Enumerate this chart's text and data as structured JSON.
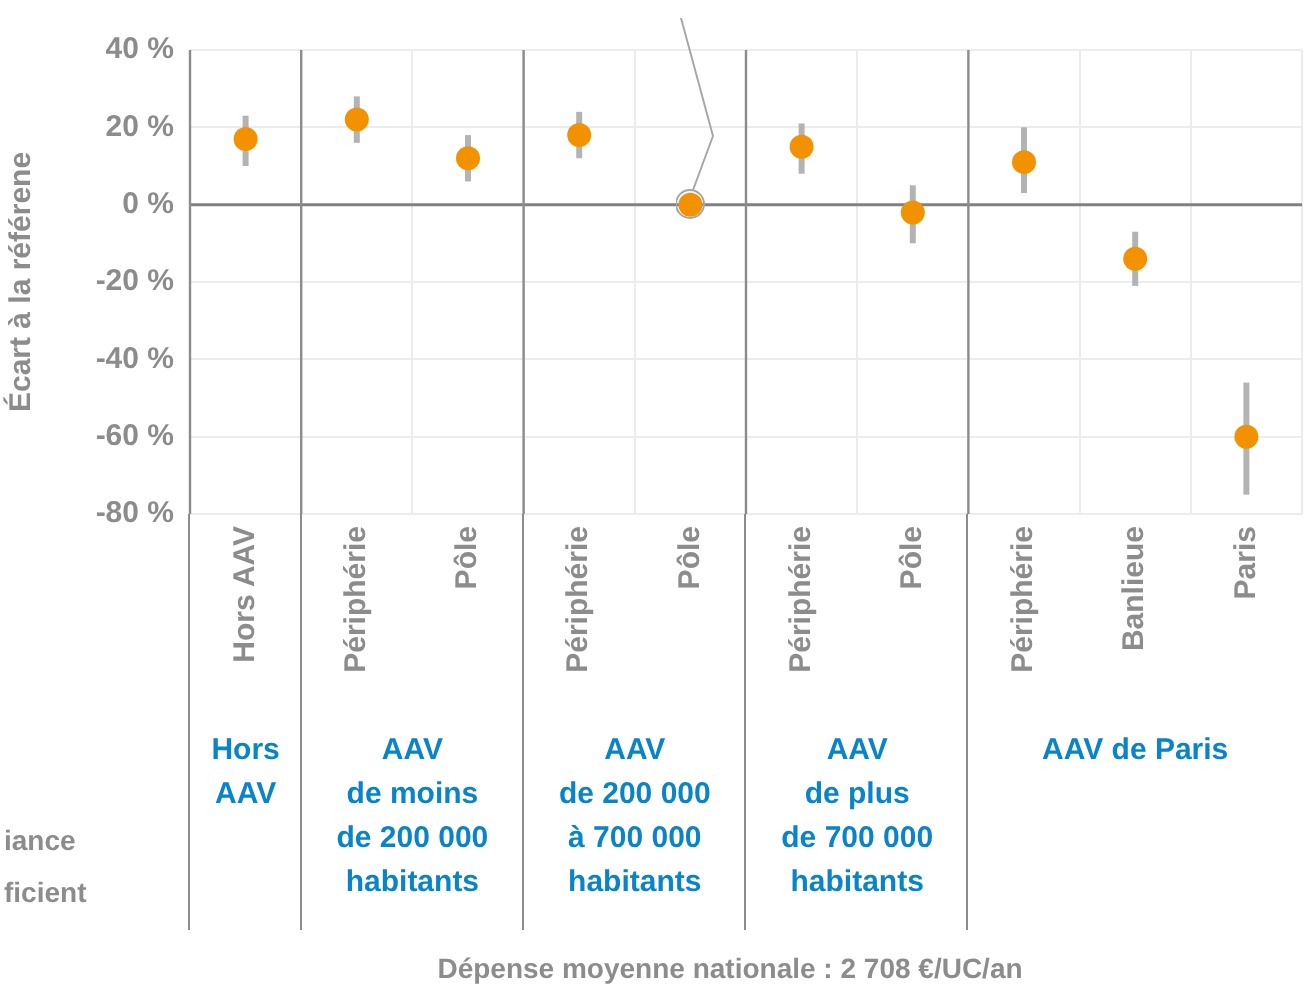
{
  "chart_data": {
    "type": "scatter",
    "ylabel": "Écart à la référene",
    "categories": [
      "Hors AAV",
      "Périphérie",
      "Pôle",
      "Périphérie",
      "Pôle",
      "Périphérie",
      "Pôle",
      "Périphérie",
      "Banlieue",
      "Paris"
    ],
    "series": [
      {
        "color": "#f39200",
        "values": [
          17,
          22,
          12,
          18,
          0,
          15,
          -2,
          11,
          -14,
          -60
        ],
        "errors": [
          [
            10,
            23
          ],
          [
            16,
            28
          ],
          [
            6,
            18
          ],
          [
            12,
            24
          ],
          null,
          [
            8,
            21
          ],
          [
            -10,
            5
          ],
          [
            3,
            20
          ],
          [
            -21,
            -7
          ],
          [
            -75,
            -46
          ]
        ]
      }
    ],
    "ylim": [
      -80,
      40
    ],
    "yticks": [
      {
        "value": -80,
        "label": "-80 %"
      },
      {
        "value": -60,
        "label": "-60 %"
      },
      {
        "value": -40,
        "label": "-40 %"
      },
      {
        "value": -20,
        "label": "-20 %"
      },
      {
        "value": 0,
        "label": "0 %"
      },
      {
        "value": 20,
        "label": "20 %"
      },
      {
        "value": 40,
        "label": "40 %"
      }
    ],
    "grid": true,
    "legend": false,
    "marker": "circle",
    "ref_lines": [
      {
        "axis": "y",
        "value": 0,
        "color": "#808080"
      }
    ],
    "annotations": [
      "Hors\nAAV",
      "AAV\nde moins\nde 200 000\nhabitants",
      "AAV\nde 200 000\nà 700 000\nhabitants",
      "AAV\nde plus\nde 700 000\nhabitants",
      "AAV de Paris",
      "iance",
      "ficient",
      "Dépense moyenne nationale : 2 708 €/UC/an"
    ]
  }
}
